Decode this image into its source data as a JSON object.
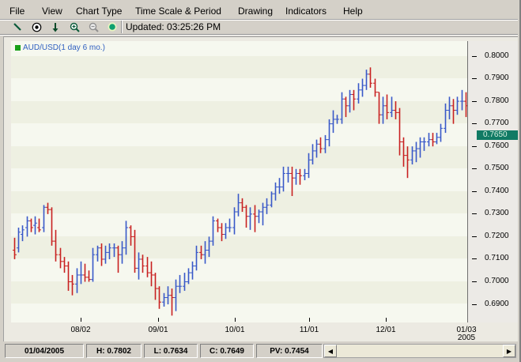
{
  "menu": {
    "items": [
      "File",
      "View",
      "Chart Type",
      "Time Scale & Period",
      "Drawing",
      "Indicators",
      "Help"
    ]
  },
  "toolbar": {
    "tools": [
      "draw-line-icon",
      "crosshair-icon",
      "down-arrow-icon",
      "zoom-in-icon",
      "zoom-out-icon",
      "status-light-icon"
    ],
    "updated_text": "Updated: 03:25:26 PM"
  },
  "chart": {
    "legend": "AUD/USD(1 day 6 mo.)",
    "current_price": "0.7650",
    "colors": {
      "up": "#3858c8",
      "down": "#c82020",
      "current": "#e8a020",
      "band_dark": "#eef0e2",
      "band_light": "#f6f8ef",
      "marker_bg": "#107a64"
    }
  },
  "status": {
    "date": "01/04/2005",
    "high": "H: 0.7802",
    "low": "L: 0.7634",
    "close": "C: 0.7649",
    "pv": "PV: 0.7454"
  },
  "chart_data": {
    "type": "ohlc",
    "title": "AUD/USD(1 day 6 mo.)",
    "xlabel": "",
    "ylabel": "",
    "ylim": [
      0.684,
      0.802
    ],
    "yticks": [
      "0.8000",
      "0.7900",
      "0.7800",
      "0.7700",
      "0.7600",
      "0.7500",
      "0.7400",
      "0.7300",
      "0.7200",
      "0.7100",
      "0.7000",
      "0.6900"
    ],
    "xticks": [
      "08/02",
      "09/01",
      "10/01",
      "11/01",
      "12/01",
      "01/03\n2005"
    ],
    "grid": "alternating horizontal bands",
    "legend_position": "top-left",
    "current_price_marker": 0.765,
    "last_bar": {
      "date": "01/04/2005",
      "high": 0.7802,
      "low": 0.7634,
      "close": 0.7649
    },
    "bars": [
      [
        0.714,
        0.7195,
        0.71,
        0.712
      ],
      [
        0.715,
        0.724,
        0.713,
        0.722
      ],
      [
        0.721,
        0.725,
        0.718,
        0.723
      ],
      [
        0.724,
        0.729,
        0.72,
        0.727
      ],
      [
        0.727,
        0.728,
        0.722,
        0.724
      ],
      [
        0.725,
        0.729,
        0.721,
        0.726
      ],
      [
        0.724,
        0.728,
        0.722,
        0.723
      ],
      [
        0.724,
        0.734,
        0.722,
        0.733
      ],
      [
        0.733,
        0.735,
        0.73,
        0.732
      ],
      [
        0.732,
        0.733,
        0.716,
        0.718
      ],
      [
        0.718,
        0.723,
        0.709,
        0.712
      ],
      [
        0.712,
        0.715,
        0.706,
        0.709
      ],
      [
        0.709,
        0.711,
        0.704,
        0.707
      ],
      [
        0.707,
        0.709,
        0.696,
        0.7
      ],
      [
        0.7,
        0.703,
        0.694,
        0.699
      ],
      [
        0.699,
        0.706,
        0.695,
        0.703
      ],
      [
        0.703,
        0.709,
        0.699,
        0.703
      ],
      [
        0.703,
        0.708,
        0.7,
        0.702
      ],
      [
        0.702,
        0.705,
        0.7,
        0.701
      ],
      [
        0.701,
        0.715,
        0.7,
        0.712
      ],
      [
        0.712,
        0.716,
        0.709,
        0.715
      ],
      [
        0.715,
        0.717,
        0.707,
        0.71
      ],
      [
        0.71,
        0.716,
        0.708,
        0.713
      ],
      [
        0.713,
        0.717,
        0.71,
        0.715
      ],
      [
        0.715,
        0.717,
        0.711,
        0.715
      ],
      [
        0.715,
        0.716,
        0.704,
        0.712
      ],
      [
        0.712,
        0.718,
        0.708,
        0.715
      ],
      [
        0.715,
        0.727,
        0.712,
        0.724
      ],
      [
        0.724,
        0.725,
        0.716,
        0.72
      ],
      [
        0.72,
        0.723,
        0.704,
        0.706
      ],
      [
        0.706,
        0.713,
        0.701,
        0.71
      ],
      [
        0.71,
        0.712,
        0.704,
        0.707
      ],
      [
        0.707,
        0.711,
        0.702,
        0.704
      ],
      [
        0.704,
        0.709,
        0.698,
        0.703
      ],
      [
        0.703,
        0.704,
        0.692,
        0.697
      ],
      [
        0.697,
        0.698,
        0.688,
        0.691
      ],
      [
        0.691,
        0.695,
        0.689,
        0.693
      ],
      [
        0.693,
        0.698,
        0.69,
        0.694
      ],
      [
        0.694,
        0.697,
        0.685,
        0.693
      ],
      [
        0.693,
        0.701,
        0.687,
        0.698
      ],
      [
        0.698,
        0.703,
        0.695,
        0.698
      ],
      [
        0.698,
        0.704,
        0.696,
        0.7
      ],
      [
        0.7,
        0.706,
        0.699,
        0.704
      ],
      [
        0.704,
        0.709,
        0.701,
        0.707
      ],
      [
        0.707,
        0.716,
        0.705,
        0.713
      ],
      [
        0.713,
        0.716,
        0.71,
        0.712
      ],
      [
        0.712,
        0.718,
        0.708,
        0.714
      ],
      [
        0.714,
        0.72,
        0.711,
        0.718
      ],
      [
        0.718,
        0.729,
        0.716,
        0.727
      ],
      [
        0.727,
        0.728,
        0.722,
        0.724
      ],
      [
        0.724,
        0.726,
        0.718,
        0.721
      ],
      [
        0.721,
        0.726,
        0.719,
        0.724
      ],
      [
        0.724,
        0.728,
        0.722,
        0.724
      ],
      [
        0.724,
        0.733,
        0.721,
        0.731
      ],
      [
        0.731,
        0.739,
        0.729,
        0.735
      ],
      [
        0.735,
        0.737,
        0.731,
        0.733
      ],
      [
        0.733,
        0.734,
        0.724,
        0.729
      ],
      [
        0.729,
        0.733,
        0.723,
        0.73
      ],
      [
        0.73,
        0.734,
        0.722,
        0.729
      ],
      [
        0.729,
        0.732,
        0.726,
        0.731
      ],
      [
        0.731,
        0.735,
        0.725,
        0.733
      ],
      [
        0.733,
        0.737,
        0.73,
        0.734
      ],
      [
        0.734,
        0.74,
        0.733,
        0.739
      ],
      [
        0.739,
        0.744,
        0.736,
        0.742
      ],
      [
        0.742,
        0.746,
        0.739,
        0.742
      ],
      [
        0.742,
        0.751,
        0.74,
        0.748
      ],
      [
        0.748,
        0.751,
        0.744,
        0.748
      ],
      [
        0.748,
        0.751,
        0.738,
        0.746
      ],
      [
        0.746,
        0.75,
        0.743,
        0.748
      ],
      [
        0.748,
        0.75,
        0.743,
        0.747
      ],
      [
        0.747,
        0.75,
        0.745,
        0.748
      ],
      [
        0.748,
        0.757,
        0.746,
        0.754
      ],
      [
        0.754,
        0.761,
        0.752,
        0.758
      ],
      [
        0.758,
        0.763,
        0.755,
        0.761
      ],
      [
        0.761,
        0.764,
        0.757,
        0.759
      ],
      [
        0.759,
        0.765,
        0.757,
        0.763
      ],
      [
        0.763,
        0.772,
        0.76,
        0.77
      ],
      [
        0.77,
        0.776,
        0.766,
        0.772
      ],
      [
        0.772,
        0.774,
        0.77,
        0.772
      ],
      [
        0.772,
        0.784,
        0.77,
        0.781
      ],
      [
        0.781,
        0.782,
        0.773,
        0.778
      ],
      [
        0.778,
        0.785,
        0.775,
        0.783
      ],
      [
        0.783,
        0.785,
        0.776,
        0.781
      ],
      [
        0.781,
        0.788,
        0.779,
        0.785
      ],
      [
        0.785,
        0.79,
        0.782,
        0.787
      ],
      [
        0.787,
        0.794,
        0.785,
        0.792
      ],
      [
        0.792,
        0.795,
        0.786,
        0.788
      ],
      [
        0.788,
        0.79,
        0.782,
        0.784
      ],
      [
        0.784,
        0.784,
        0.77,
        0.774
      ],
      [
        0.774,
        0.782,
        0.77,
        0.778
      ],
      [
        0.778,
        0.783,
        0.772,
        0.775
      ],
      [
        0.775,
        0.782,
        0.773,
        0.776
      ],
      [
        0.776,
        0.78,
        0.772,
        0.775
      ],
      [
        0.775,
        0.777,
        0.756,
        0.762
      ],
      [
        0.762,
        0.764,
        0.751,
        0.756
      ],
      [
        0.756,
        0.76,
        0.746,
        0.754
      ],
      [
        0.754,
        0.76,
        0.752,
        0.758
      ],
      [
        0.758,
        0.762,
        0.753,
        0.759
      ],
      [
        0.759,
        0.764,
        0.755,
        0.762
      ],
      [
        0.762,
        0.764,
        0.758,
        0.762
      ],
      [
        0.762,
        0.766,
        0.76,
        0.763
      ],
      [
        0.763,
        0.766,
        0.76,
        0.762
      ],
      [
        0.762,
        0.766,
        0.761,
        0.764
      ],
      [
        0.764,
        0.77,
        0.762,
        0.768
      ],
      [
        0.768,
        0.779,
        0.766,
        0.776
      ],
      [
        0.776,
        0.782,
        0.772,
        0.778
      ],
      [
        0.778,
        0.781,
        0.77,
        0.776
      ],
      [
        0.776,
        0.782,
        0.774,
        0.78
      ],
      [
        0.78,
        0.785,
        0.776,
        0.78
      ],
      [
        0.78,
        0.784,
        0.773,
        0.778
      ],
      [
        0.778,
        0.7802,
        0.7634,
        0.7649
      ]
    ]
  }
}
